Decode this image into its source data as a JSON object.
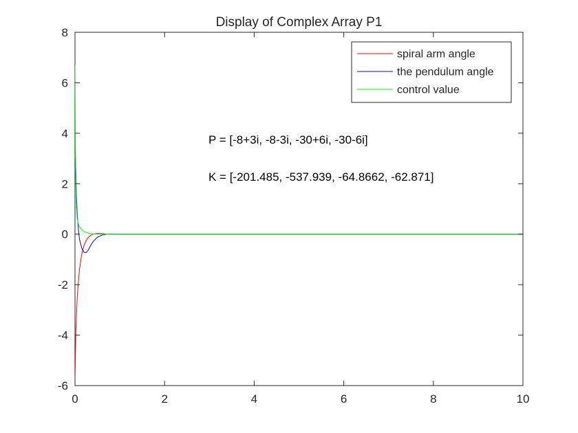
{
  "chart_data": {
    "type": "line",
    "title": "Display of Complex Array P1",
    "xlabel": "",
    "ylabel": "",
    "xlim": [
      0,
      10
    ],
    "ylim": [
      -6,
      8
    ],
    "xticks": [
      0,
      2,
      4,
      6,
      8,
      10
    ],
    "yticks": [
      -6,
      -4,
      -2,
      0,
      2,
      4,
      6,
      8
    ],
    "grid": false,
    "legend_position": "top-right",
    "series": [
      {
        "name": "spiral arm angle",
        "color": "#ff0000",
        "x": [
          0,
          0.02,
          0.05,
          0.08,
          0.1,
          0.15,
          0.2,
          0.25,
          0.3,
          0.35,
          0.4,
          0.5,
          0.6,
          0.7,
          0.8,
          1.0,
          1.5,
          2,
          10
        ],
        "y": [
          -5.8,
          -3.8,
          -2.5,
          -1.8,
          -1.4,
          -0.8,
          -0.45,
          -0.25,
          -0.12,
          -0.05,
          0.0,
          0.03,
          0.02,
          0.01,
          0.0,
          0.0,
          0.0,
          0.0,
          0.0
        ]
      },
      {
        "name": "the pendulum angle",
        "color": "#0000ff",
        "x": [
          0,
          0.01,
          0.02,
          0.03,
          0.05,
          0.08,
          0.1,
          0.15,
          0.2,
          0.25,
          0.3,
          0.35,
          0.4,
          0.5,
          0.6,
          0.7,
          0.8,
          1.0,
          1.2,
          1.5,
          10
        ],
        "y": [
          2.3,
          3.0,
          2.4,
          1.6,
          0.8,
          0.1,
          -0.2,
          -0.55,
          -0.72,
          -0.73,
          -0.62,
          -0.45,
          -0.3,
          -0.12,
          -0.04,
          0.0,
          0.01,
          0.0,
          0.0,
          0.0,
          0.0
        ]
      },
      {
        "name": "control value",
        "color": "#00ff00",
        "x": [
          0,
          0.01,
          0.02,
          0.03,
          0.05,
          0.08,
          0.1,
          0.15,
          0.2,
          0.3,
          0.4,
          0.5,
          0.7,
          1.0,
          10
        ],
        "y": [
          6.7,
          3.5,
          1.9,
          1.1,
          0.6,
          0.38,
          0.3,
          0.18,
          0.1,
          0.04,
          0.01,
          0.0,
          0.0,
          0.0,
          0.0
        ]
      }
    ],
    "annotations": [
      {
        "text": "P = [-8+3i, -8-3i, -30+6i, -30-6i]",
        "x": 2.98,
        "y": 3.75
      },
      {
        "text": "K = [-201.485, -537.939, -64.8662, -62.871]",
        "x": 2.98,
        "y": 2.28
      }
    ]
  }
}
